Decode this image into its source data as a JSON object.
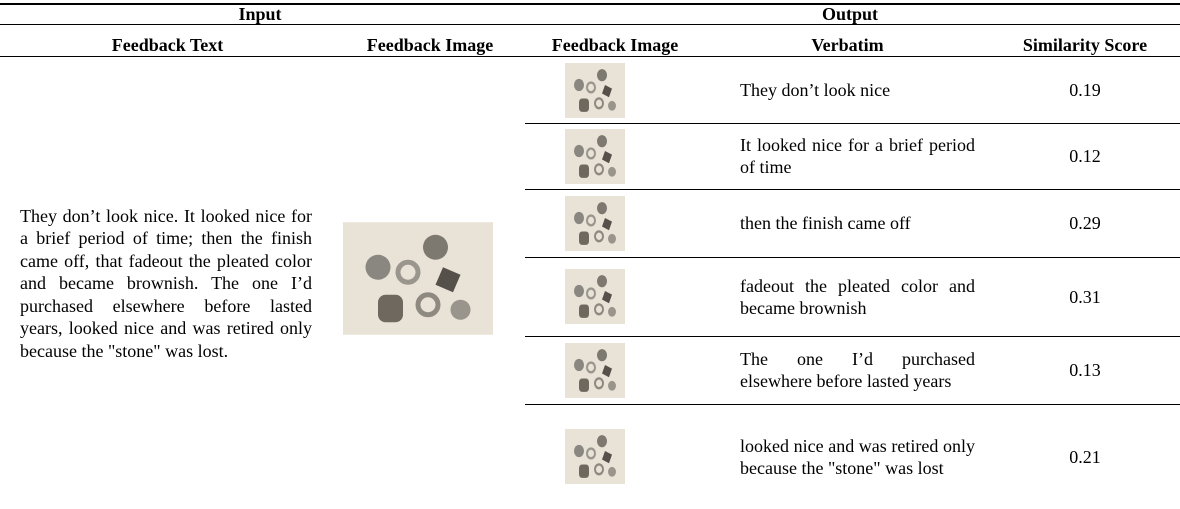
{
  "header": {
    "groups": [
      "Input",
      "Output"
    ],
    "columns": [
      "Feedback Text",
      "Feedback Image",
      "Feedback Image",
      "Verbatim",
      "Similarity Score"
    ]
  },
  "input": {
    "feedback_text": "They don’t look nice. It looked nice for a brief period of time; then the finish came off, that fadeout the pleated color and became brownish.  The one I’d purchased elsewhere before lasted years, looked nice and was retired only because the \"stone\" was lost."
  },
  "rows": [
    {
      "verbatim": "They don’t look nice",
      "similarity_score": 0.19
    },
    {
      "verbatim": "It looked nice for a brief period of time",
      "similarity_score": 0.12
    },
    {
      "verbatim": "then the finish came off",
      "similarity_score": 0.29
    },
    {
      "verbatim": "fadeout the pleated color and became brownish",
      "similarity_score": 0.31
    },
    {
      "verbatim": "The one I’d purchased elsewhere before lasted years",
      "similarity_score": 0.13
    },
    {
      "verbatim": "looked nice and was retired only because the \"stone\" was lost",
      "similarity_score": 0.21
    }
  ]
}
